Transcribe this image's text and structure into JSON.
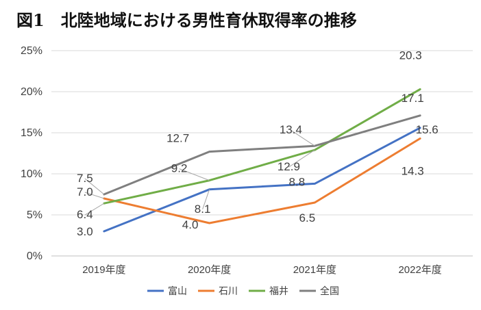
{
  "title": "図1　北陸地域における男性育休取得率の推移",
  "chart_data": {
    "type": "line",
    "title": "図1　北陸地域における男性育休取得率の推移",
    "categories": [
      "2019年度",
      "2020年度",
      "2021年度",
      "2022年度"
    ],
    "series": [
      {
        "name": "富山",
        "color": "#4472C4",
        "values": [
          3.0,
          8.1,
          8.8,
          15.6
        ],
        "labels": [
          "3.0",
          "8.1",
          "8.8",
          "15.6"
        ]
      },
      {
        "name": "石川",
        "color": "#ED7D31",
        "values": [
          7.0,
          4.0,
          6.5,
          14.3
        ],
        "labels": [
          "7.0",
          "4.0",
          "6.5",
          "14.3"
        ]
      },
      {
        "name": "福井",
        "color": "#70AD47",
        "values": [
          6.4,
          9.2,
          12.9,
          20.3
        ],
        "labels": [
          "6.4",
          "9.2",
          "12.9",
          "20.3"
        ]
      },
      {
        "name": "全国",
        "color": "#7F7F7F",
        "values": [
          7.5,
          12.7,
          13.4,
          17.1
        ],
        "labels": [
          "7.5",
          "12.7",
          "13.4",
          "17.1"
        ]
      }
    ],
    "yticks": [
      "0%",
      "5%",
      "10%",
      "15%",
      "20%",
      "25%"
    ],
    "ylim": [
      0,
      25
    ],
    "xlabel": "",
    "ylabel": "",
    "legend": "bottom",
    "grid": true
  }
}
